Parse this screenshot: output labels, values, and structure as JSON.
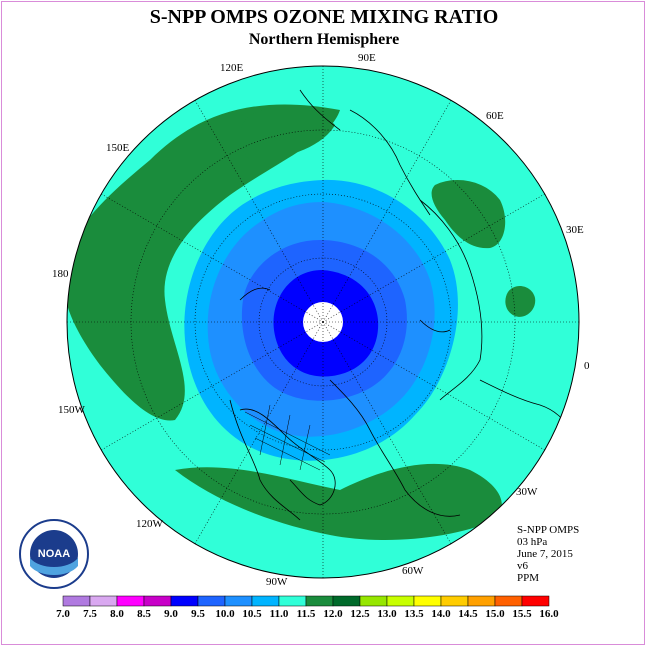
{
  "title": "S-NPP OMPS OZONE MIXING RATIO",
  "subtitle": "Northern Hemisphere",
  "longitude_labels": [
    "90E",
    "60E",
    "30E",
    "0",
    "30W",
    "60W",
    "90W",
    "120W",
    "150W",
    "180",
    "150E",
    "120E"
  ],
  "info": {
    "instrument": "S-NPP OMPS",
    "level": "03 hPa",
    "date": "June 7, 2015",
    "version": "v6",
    "units": "PPM"
  },
  "colorbar": {
    "labels": [
      "7.0",
      "7.5",
      "8.0",
      "8.5",
      "9.0",
      "9.5",
      "10.0",
      "10.5",
      "11.0",
      "11.5",
      "12.0",
      "12.5",
      "13.0",
      "13.5",
      "14.0",
      "14.5",
      "15.0",
      "15.5",
      "16.0"
    ],
    "colors": [
      "#b07ae0",
      "#d9a8f0",
      "#ff00ff",
      "#c800c8",
      "#0000ff",
      "#1e64ff",
      "#1e90ff",
      "#00b4ff",
      "#30ffd8",
      "#1a8c3c",
      "#006a2a",
      "#96e600",
      "#c8ff00",
      "#ffff00",
      "#ffcc00",
      "#ffa000",
      "#ff6000",
      "#ff0000",
      "#8b4513"
    ]
  },
  "logo": {
    "text": "NOAA",
    "ring_text": "NATIONAL OCEANIC AND ATMOSPHERIC ADMINISTRATION · U.S. DEPARTMENT OF COMMERCE"
  },
  "map_colors": {
    "background": "#30ffd8",
    "green": "#1a8c3c",
    "band_105": "#00b4ff",
    "band_10": "#1e90ff",
    "band_95": "#1e64ff",
    "band_9": "#0000ff",
    "pole": "#ffffff"
  }
}
